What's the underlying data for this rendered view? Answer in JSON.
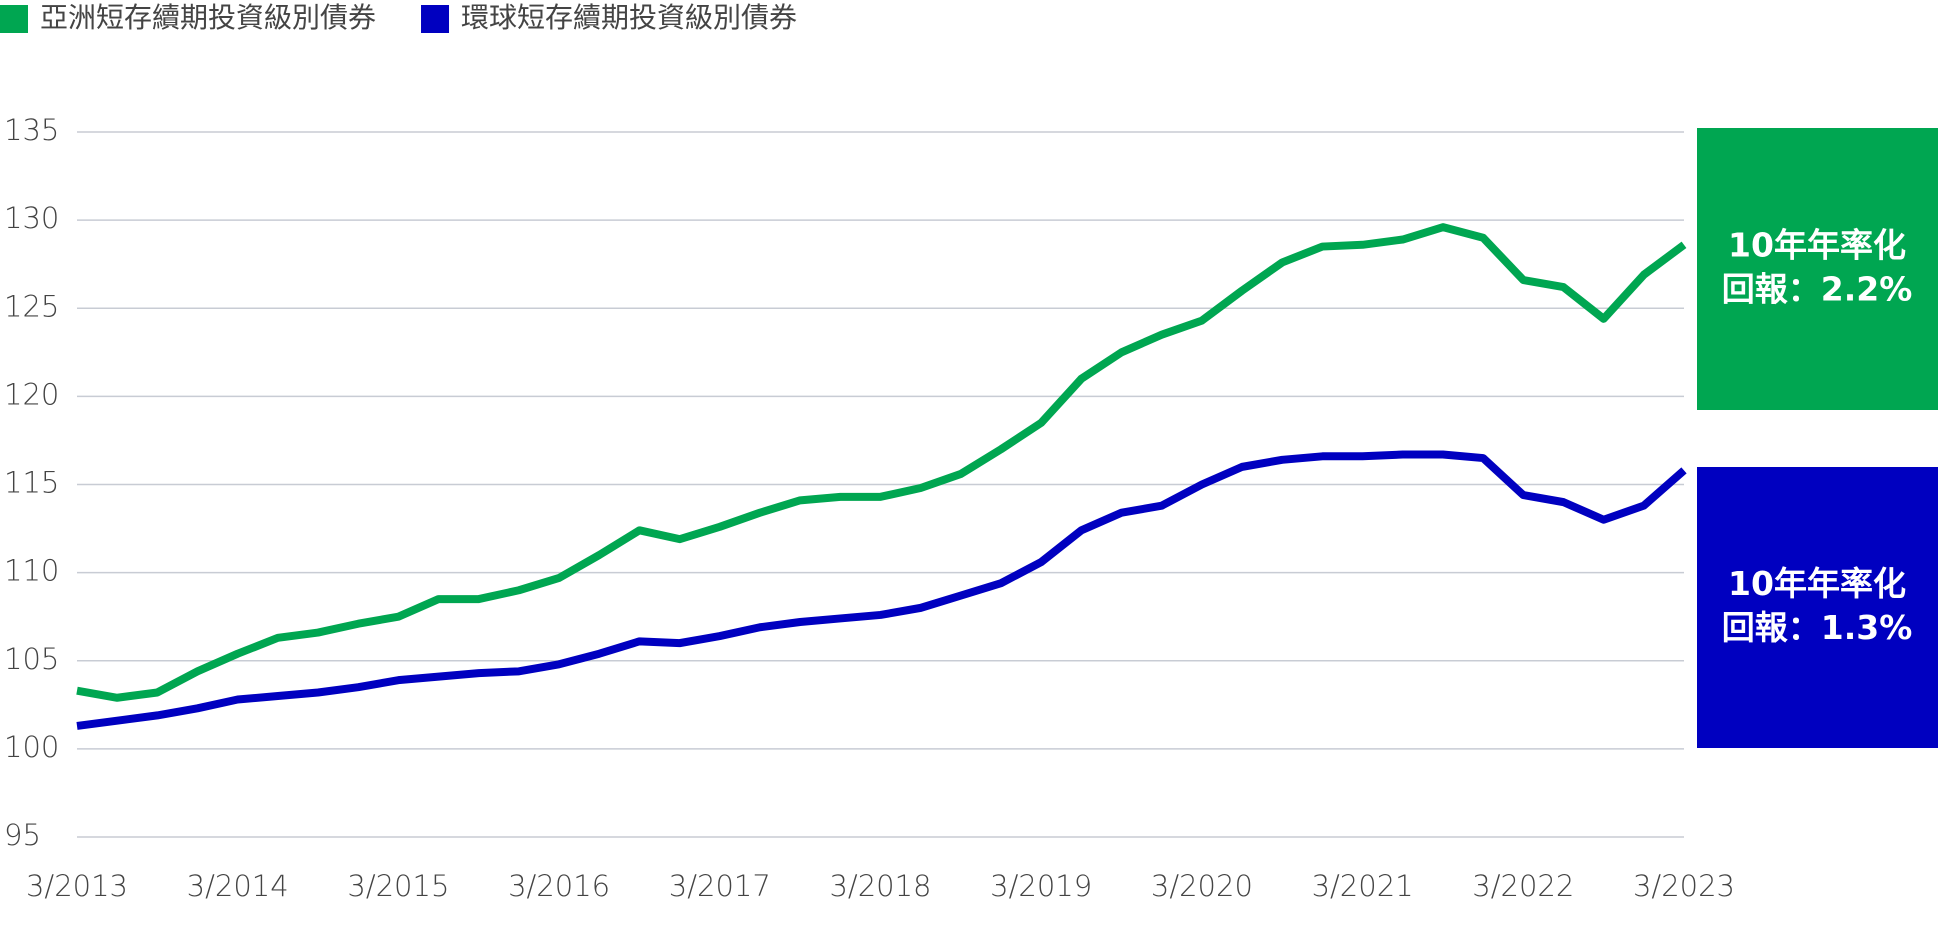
{
  "chart_data": {
    "type": "line",
    "categories": [
      "3/2013",
      null,
      null,
      null,
      "3/2014",
      null,
      null,
      null,
      "3/2015",
      null,
      null,
      null,
      "3/2016",
      null,
      null,
      null,
      "3/2017",
      null,
      null,
      null,
      "3/2018",
      null,
      null,
      null,
      "3/2019",
      null,
      null,
      null,
      "3/2020",
      null,
      null,
      null,
      "3/2021",
      null,
      null,
      null,
      "3/2022",
      null,
      null,
      null,
      "3/2023"
    ],
    "series": [
      {
        "name": "亞洲短存續期投資級別債券",
        "color": "#00a651",
        "values": [
          103.3,
          102.9,
          103.2,
          104.4,
          105.4,
          106.3,
          106.6,
          107.1,
          107.5,
          108.5,
          108.5,
          109.0,
          109.7,
          111.0,
          112.4,
          111.9,
          112.6,
          113.4,
          114.1,
          114.3,
          114.3,
          114.8,
          115.6,
          117.0,
          118.5,
          121.0,
          122.5,
          123.5,
          124.3,
          126.0,
          127.6,
          128.5,
          128.6,
          128.9,
          129.6,
          129.0,
          126.6,
          126.2,
          124.4,
          126.9,
          128.6
        ]
      },
      {
        "name": "環球短存續期投資級別債券",
        "color": "#0000c0",
        "values": [
          101.3,
          101.6,
          101.9,
          102.3,
          102.8,
          103.0,
          103.2,
          103.5,
          103.9,
          104.1,
          104.3,
          104.4,
          104.8,
          105.4,
          106.1,
          106.0,
          106.4,
          106.9,
          107.2,
          107.4,
          107.6,
          108.0,
          108.7,
          109.4,
          110.6,
          112.4,
          113.4,
          113.8,
          115.0,
          116.0,
          116.4,
          116.6,
          116.6,
          116.7,
          116.7,
          116.5,
          114.4,
          114.0,
          113.0,
          113.8,
          115.8
        ]
      }
    ],
    "ylim": [
      95,
      135
    ],
    "yticks": [
      95,
      100,
      105,
      110,
      115,
      120,
      125,
      130,
      135
    ],
    "grid": true,
    "annotations": [
      {
        "text": [
          "10年年率化",
          "回報：2.2%"
        ],
        "color": "#00a651"
      },
      {
        "text": [
          "10年年率化",
          "回報：1.3%"
        ],
        "color": "#0000c0"
      }
    ]
  }
}
